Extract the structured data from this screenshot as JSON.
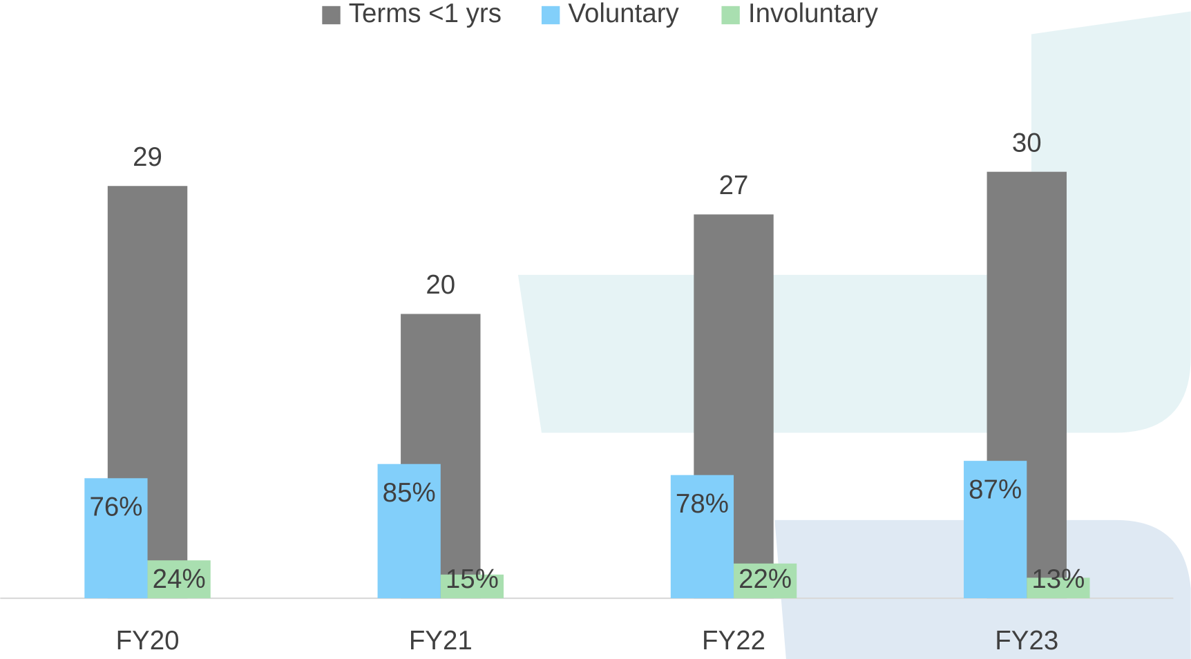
{
  "chart_data": {
    "type": "bar",
    "categories": [
      "FY20",
      "FY21",
      "FY22",
      "FY23"
    ],
    "series": [
      {
        "name": "Terms <1 yrs",
        "color": "#7f7f7f",
        "values": [
          29,
          20,
          27,
          30
        ]
      },
      {
        "name": "Voluntary",
        "color": "#82cffa",
        "axis": "y2",
        "values": [
          76,
          85,
          78,
          87
        ],
        "value_labels": [
          "76%",
          "85%",
          "78%",
          "87%"
        ]
      },
      {
        "name": "Involuntary",
        "color": "#a9dfb0",
        "axis": "y2",
        "values": [
          24,
          15,
          22,
          13
        ],
        "value_labels": [
          "24%",
          "15%",
          "22%",
          "13%"
        ]
      }
    ],
    "ylim": [
      0,
      40
    ],
    "y2lim": [
      0,
      360
    ],
    "legend": "top"
  }
}
